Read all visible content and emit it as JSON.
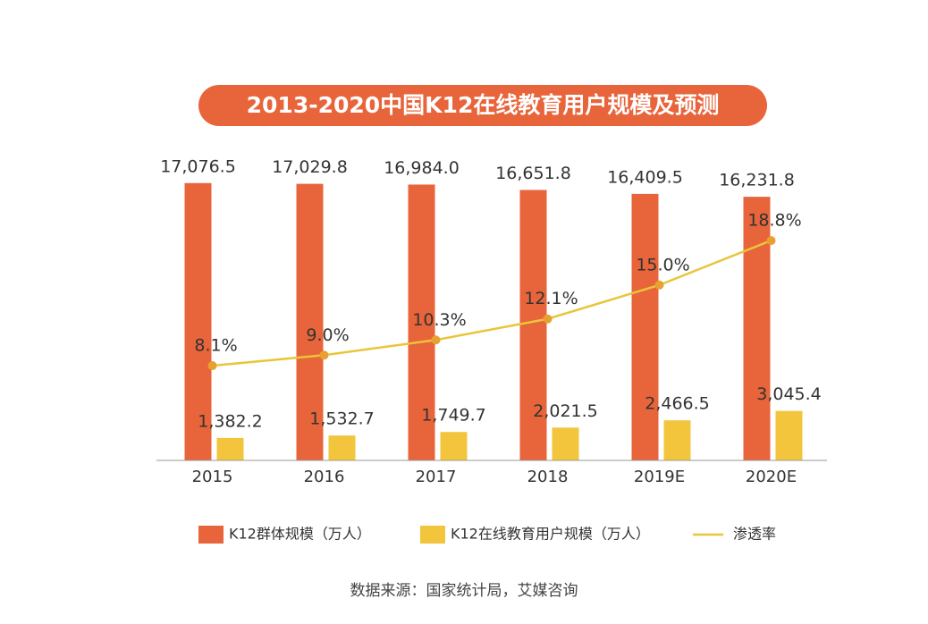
{
  "chart_data": {
    "type": "bar_line",
    "title": "2013-2020中国K12在线教育用户规模及预测",
    "source": "数据来源：国家统计局，艾媒咨询",
    "categories": [
      "2015",
      "2016",
      "2017",
      "2018",
      "2019E",
      "2020E"
    ],
    "series": [
      {
        "name": "K12群体规模（万人）",
        "type": "bar",
        "color": "#e8643a",
        "values": [
          17076.5,
          17029.8,
          16984.0,
          16651.8,
          16409.5,
          16231.8
        ],
        "value_labels": [
          "17,076.5",
          "17,029.8",
          "16,984.0",
          "16,651.8",
          "16,409.5",
          "16,231.8"
        ]
      },
      {
        "name": "K12在线教育用户规模（万人）",
        "type": "bar",
        "color": "#f2c53d",
        "values": [
          1382.2,
          1532.7,
          1749.7,
          2021.5,
          2466.5,
          3045.4
        ],
        "value_labels": [
          "1,382.2",
          "1,532.7",
          "1,749.7",
          "2,021.5",
          "2,466.5",
          "3,045.4"
        ]
      },
      {
        "name": "渗透率",
        "type": "line",
        "axis": "y2",
        "color": "#e9c53a",
        "values": [
          8.1,
          9.0,
          10.3,
          12.1,
          15.0,
          18.8
        ],
        "value_labels": [
          "8.1%",
          "9.0%",
          "10.3%",
          "12.1%",
          "15.0%",
          "18.8%"
        ]
      }
    ],
    "ylim": [
      0,
      18000
    ],
    "y2lim": [
      0,
      25
    ],
    "grid": false,
    "legend": "bottom"
  }
}
